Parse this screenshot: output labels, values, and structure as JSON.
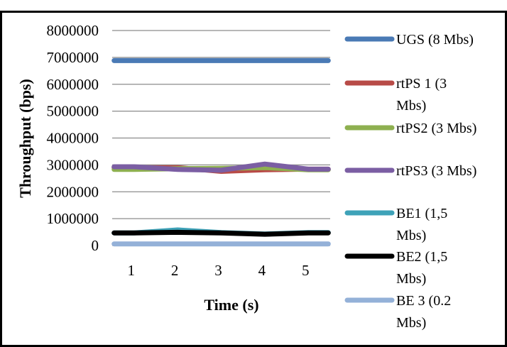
{
  "chart_data": {
    "type": "line",
    "title": "",
    "xlabel": "Time (s)",
    "ylabel": "Throughput (bps)",
    "x": [
      1,
      2,
      3,
      4,
      5
    ],
    "ylim": [
      0,
      8000000
    ],
    "yticks": [
      "0",
      "1000000",
      "2000000",
      "3000000",
      "4000000",
      "5000000",
      "6000000",
      "7000000",
      "8000000"
    ],
    "xticks": [
      "1",
      "2",
      "3",
      "4",
      "5"
    ],
    "grid": "horizontal",
    "legend_position": "right",
    "series": [
      {
        "name": "UGS (8 Mbs)",
        "name_lines": [
          "UGS (8 Mbs)"
        ],
        "color": "#4a7ab5",
        "values": [
          6880000,
          6880000,
          6880000,
          6880000,
          6880000
        ]
      },
      {
        "name": "rtPS 1 (3 Mbs)",
        "name_lines": [
          "rtPS 1 (3",
          "Mbs)"
        ],
        "color": "#b84b47",
        "values": [
          2900000,
          2900000,
          2760000,
          2820000,
          2840000
        ]
      },
      {
        "name": "rtPS2 (3 Mbs)",
        "name_lines": [
          "rtPS2 (3 Mbs)"
        ],
        "color": "#8eb050",
        "values": [
          2830000,
          2860000,
          2870000,
          2900000,
          2820000
        ]
      },
      {
        "name": "rtPS3 (3 Mbs)",
        "name_lines": [
          "rtPS3 (3 Mbs)"
        ],
        "color": "#7b5ea3",
        "values": [
          2930000,
          2830000,
          2800000,
          3030000,
          2840000
        ]
      },
      {
        "name": "BE1 (1,5 Mbs)",
        "name_lines": [
          "BE1 (1,5",
          "Mbs)"
        ],
        "color": "#3ea2b8",
        "values": [
          470000,
          580000,
          480000,
          430000,
          480000
        ]
      },
      {
        "name": "BE2 (1,5 Mbs)",
        "name_lines": [
          "BE2 (1,5",
          "Mbs)"
        ],
        "color": "#000000",
        "values": [
          470000,
          490000,
          470000,
          420000,
          470000
        ]
      },
      {
        "name": "BE 3 (0.2 Mbs)",
        "name_lines": [
          "BE 3 (0.2",
          "Mbs)"
        ],
        "color": "#94b1d8",
        "values": [
          60000,
          60000,
          60000,
          60000,
          60000
        ]
      }
    ]
  }
}
